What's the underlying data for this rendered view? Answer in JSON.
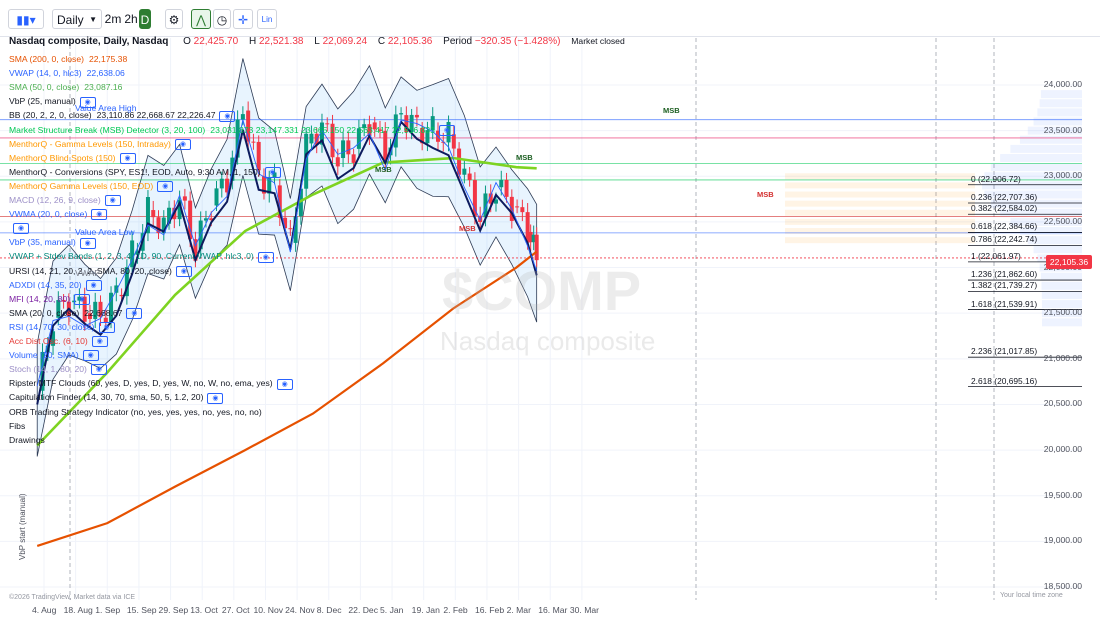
{
  "toolbar": {
    "interval": "Daily",
    "range_2m": "2m",
    "range_2h": "2h",
    "range_d": "D",
    "lin": "Lin"
  },
  "header": {
    "title": "Nasdaq composite, Daily, Nasdaq",
    "o_label": "O",
    "o": "22,425.70",
    "h_label": "H",
    "h": "22,521.38",
    "l_label": "L",
    "l": "22,069.24",
    "c_label": "C",
    "c": "22,105.36",
    "period_label": "Period",
    "period": "−320.35 (−1.428%)",
    "status": "Market closed"
  },
  "watermark": {
    "symbol": "$COMP",
    "name": "Nasdaq composite"
  },
  "legend": [
    {
      "text": "SMA (200, 0, close)",
      "value": "22,175.38",
      "color": "#e65100"
    },
    {
      "text": "VWAP (14, 0, hlc3)",
      "value": "22,638.06",
      "color": "#2962ff"
    },
    {
      "text": "SMA (50, 0, close)",
      "value": "23,087.16",
      "color": "#4caf50"
    },
    {
      "text": "VbP (25, manual)",
      "value": "",
      "color": "#131722"
    },
    {
      "text": "BB (20, 2, 2, 0, close)",
      "value": "23,110.86  22,668.67  22,226.47",
      "color": "#131722"
    },
    {
      "text": "Market Structure Break (MSB) Detector (3, 20, 100)",
      "value": "23,031.873  23,147.331  23,665.150  22,563.417  22,916.833",
      "color": "#00c853"
    },
    {
      "text": "MenthorQ - Gamma Levels (150, Intraday)",
      "value": "",
      "color": "#ff9800"
    },
    {
      "text": "MenthorQ Blind Spots (150)",
      "value": "",
      "color": "#ff9800"
    },
    {
      "text": "MenthorQ - Conversions (SPY, ES1!, EOD, Auto, 9:30 AM, 1, 150)",
      "value": "",
      "color": "#131722"
    },
    {
      "text": "MenthorQ Gamma Levels (150, EOD)",
      "value": "",
      "color": "#ff9800"
    },
    {
      "text": "MACD (12, 26, 9, close)",
      "value": "",
      "color": "#9c8fc7"
    },
    {
      "text": "VWMA (20, 0, close)",
      "value": "",
      "color": "#2962ff"
    },
    {
      "text": "",
      "value": "",
      "color": "#e91e63"
    },
    {
      "text": "VbP (35, manual)",
      "value": "",
      "color": "#2962ff"
    },
    {
      "text": "VWAP + Stdev Bands (1, 2, 3, 4, 1D, 90, Current VWAP, hlc3, 0)",
      "value": "",
      "color": "#00897b"
    },
    {
      "text": "URSI (14, 21, 20, 2, 2, SMA, 80, 20, close)",
      "value": "",
      "color": "#131722"
    },
    {
      "text": "ADXDI (14, 35, 20)",
      "value": "",
      "color": "#2962ff"
    },
    {
      "text": "MFI (14, 20, 80)",
      "value": "",
      "color": "#7b1fa2"
    },
    {
      "text": "SMA (20, 0, close)",
      "value": "22,668.67",
      "color": "#131722"
    },
    {
      "text": "RSI (14, 70, 30, close)",
      "value": "",
      "color": "#2962ff"
    },
    {
      "text": "Acc Dist Osc. (6, 10)",
      "value": "",
      "color": "#e53935"
    },
    {
      "text": "Volume (20, SMA)",
      "value": "",
      "color": "#2962ff"
    },
    {
      "text": "Stoch (14, 1, 80, 20)",
      "value": "",
      "color": "#9c8fc7"
    },
    {
      "text": "Ripster MTF Clouds (60, yes, D, yes, D, yes, W, no, W, no, ema, yes)",
      "value": "",
      "color": "#131722"
    },
    {
      "text": "Capitulation Finder (14, 30, 70, sma, 50, 5, 1.2, 20)",
      "value": "",
      "color": "#131722"
    },
    {
      "text": "ORB Trading Strategy Indicator (no, yes, yes, yes, no, yes, no, no)",
      "value": "",
      "color": "#131722"
    },
    {
      "text": "Fibs",
      "value": "",
      "color": "#131722"
    },
    {
      "text": "Drawings",
      "value": "",
      "color": "#131722"
    }
  ],
  "annotations": {
    "value_area_high": "Value Area High",
    "value_area_low": "Value Area Low",
    "vwap": "VWAP",
    "vbp_start": "VbP start (manual)",
    "msb": "MSB",
    "tv_credit": "©2026 TradingView, Market data via ICE",
    "local_tz": "Your local time zone"
  },
  "current_price": "22,105.36",
  "fib_levels": [
    {
      "ratio": "0",
      "price": "22,906.72"
    },
    {
      "ratio": "0.236",
      "price": "22,707.36"
    },
    {
      "ratio": "0.382",
      "price": "22,584.02"
    },
    {
      "ratio": "0.618",
      "price": "22,384.66"
    },
    {
      "ratio": "0.786",
      "price": "22,242.74"
    },
    {
      "ratio": "1",
      "price": "22,061.97"
    },
    {
      "ratio": "1.236",
      "price": "21,862.60"
    },
    {
      "ratio": "1.382",
      "price": "21,739.27"
    },
    {
      "ratio": "1.618",
      "price": "21,539.91"
    },
    {
      "ratio": "2.236",
      "price": "21,017.85"
    },
    {
      "ratio": "2.618",
      "price": "20,695.16"
    }
  ],
  "colors": {
    "up": "#089981",
    "down": "#f23645",
    "sma200": "#e65100",
    "sma50": "#7ed321",
    "bbmid": "#0d1b5e",
    "vwap": "#2962ff"
  },
  "chart_data": {
    "type": "candlestick",
    "y_axis_ticks": [
      "24,000.00",
      "23,500.00",
      "23,000.00",
      "22,500.00",
      "22,000.00",
      "21,500.00",
      "21,000.00",
      "20,500.00",
      "20,000.00",
      "19,500.00",
      "19,000.00",
      "18,500.00"
    ],
    "x_axis_ticks": [
      "4. Aug",
      "18. Aug",
      "1. Sep",
      "15. Sep",
      "29. Sep",
      "13. Oct",
      "27. Oct",
      "10. Nov",
      "24. Nov",
      "8. Dec",
      "22. Dec",
      "5. Jan",
      "19. Jan",
      "2. Feb",
      "16. Feb",
      "2. Mar",
      "16. Mar",
      "30. Mar"
    ],
    "ylim": [
      18400,
      24200
    ],
    "close_series": [
      {
        "date": "2025-08-01",
        "close": 20650
      },
      {
        "date": "2025-08-08",
        "close": 21450
      },
      {
        "date": "2025-08-15",
        "close": 21620
      },
      {
        "date": "2025-08-22",
        "close": 21500
      },
      {
        "date": "2025-08-29",
        "close": 21450
      },
      {
        "date": "2025-09-05",
        "close": 21700
      },
      {
        "date": "2025-09-12",
        "close": 22140
      },
      {
        "date": "2025-09-19",
        "close": 22630
      },
      {
        "date": "2025-09-26",
        "close": 22480
      },
      {
        "date": "2025-10-03",
        "close": 22780
      },
      {
        "date": "2025-10-10",
        "close": 22200
      },
      {
        "date": "2025-10-17",
        "close": 22680
      },
      {
        "date": "2025-10-24",
        "close": 22950
      },
      {
        "date": "2025-10-31",
        "close": 23720
      },
      {
        "date": "2025-11-07",
        "close": 23000
      },
      {
        "date": "2025-11-14",
        "close": 22900
      },
      {
        "date": "2025-11-21",
        "close": 22270
      },
      {
        "date": "2025-11-28",
        "close": 23360
      },
      {
        "date": "2025-12-05",
        "close": 23580
      },
      {
        "date": "2025-12-12",
        "close": 23200
      },
      {
        "date": "2025-12-19",
        "close": 23300
      },
      {
        "date": "2025-12-26",
        "close": 23590
      },
      {
        "date": "2026-01-02",
        "close": 23230
      },
      {
        "date": "2026-01-09",
        "close": 23670
      },
      {
        "date": "2026-01-16",
        "close": 23530
      },
      {
        "date": "2026-01-23",
        "close": 23500
      },
      {
        "date": "2026-01-30",
        "close": 23460
      },
      {
        "date": "2026-02-06",
        "close": 23030
      },
      {
        "date": "2026-02-13",
        "close": 22550
      },
      {
        "date": "2026-02-20",
        "close": 22880
      },
      {
        "date": "2026-02-27",
        "close": 22670
      },
      {
        "date": "2026-03-06",
        "close": 22390
      },
      {
        "date": "2026-03-10",
        "close": 22105
      }
    ],
    "sma200": [
      {
        "date": "2025-08-01",
        "value": 18950
      },
      {
        "date": "2025-09-01",
        "value": 19200
      },
      {
        "date": "2025-10-01",
        "value": 19600
      },
      {
        "date": "2025-11-01",
        "value": 20000
      },
      {
        "date": "2025-12-01",
        "value": 20400
      },
      {
        "date": "2026-01-01",
        "value": 20950
      },
      {
        "date": "2026-02-01",
        "value": 21550
      },
      {
        "date": "2026-03-01",
        "value": 22000
      },
      {
        "date": "2026-03-10",
        "value": 22175
      }
    ],
    "sma50": [
      {
        "date": "2025-08-01",
        "value": 20050
      },
      {
        "date": "2025-09-01",
        "value": 20850
      },
      {
        "date": "2025-10-01",
        "value": 21700
      },
      {
        "date": "2025-11-01",
        "value": 22400
      },
      {
        "date": "2025-12-01",
        "value": 22800
      },
      {
        "date": "2026-01-01",
        "value": 23150
      },
      {
        "date": "2026-02-01",
        "value": 23200
      },
      {
        "date": "2026-03-01",
        "value": 23100
      },
      {
        "date": "2026-03-10",
        "value": 23087
      }
    ]
  }
}
